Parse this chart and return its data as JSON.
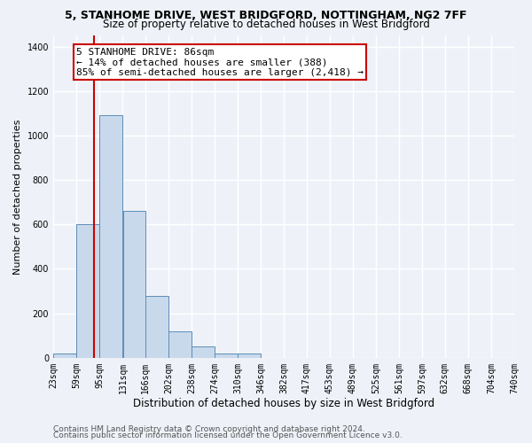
{
  "title": "5, STANHOME DRIVE, WEST BRIDGFORD, NOTTINGHAM, NG2 7FF",
  "subtitle": "Size of property relative to detached houses in West Bridgford",
  "xlabel": "Distribution of detached houses by size in West Bridgford",
  "ylabel": "Number of detached properties",
  "bin_edges": [
    23,
    59,
    95,
    131,
    166,
    202,
    238,
    274,
    310,
    346,
    382,
    417,
    453,
    489,
    525,
    561,
    597,
    632,
    668,
    704,
    740
  ],
  "bin_labels": [
    "23sqm",
    "59sqm",
    "95sqm",
    "131sqm",
    "166sqm",
    "202sqm",
    "238sqm",
    "274sqm",
    "310sqm",
    "346sqm",
    "382sqm",
    "417sqm",
    "453sqm",
    "489sqm",
    "525sqm",
    "561sqm",
    "597sqm",
    "632sqm",
    "668sqm",
    "704sqm",
    "740sqm"
  ],
  "bar_heights": [
    20,
    600,
    1090,
    660,
    280,
    120,
    50,
    20,
    20,
    0,
    0,
    0,
    0,
    0,
    0,
    0,
    0,
    0,
    0,
    0
  ],
  "bar_color": "#c9d9ec",
  "bar_edge_color": "#5b8db8",
  "property_size": 86,
  "red_line_color": "#cc0000",
  "annotation_line1": "5 STANHOME DRIVE: 86sqm",
  "annotation_line2": "← 14% of detached houses are smaller (388)",
  "annotation_line3": "85% of semi-detached houses are larger (2,418) →",
  "annotation_box_color": "#ffffff",
  "annotation_box_edge": "#cc0000",
  "ylim": [
    0,
    1450
  ],
  "yticks": [
    0,
    200,
    400,
    600,
    800,
    1000,
    1200,
    1400
  ],
  "footer_line1": "Contains HM Land Registry data © Crown copyright and database right 2024.",
  "footer_line2": "Contains public sector information licensed under the Open Government Licence v3.0.",
  "bg_color": "#eef2f8",
  "grid_color": "#ffffff",
  "title_fontsize": 9,
  "subtitle_fontsize": 8.5,
  "axis_label_fontsize": 8,
  "tick_fontsize": 7,
  "annotation_fontsize": 8,
  "footer_fontsize": 6.5
}
